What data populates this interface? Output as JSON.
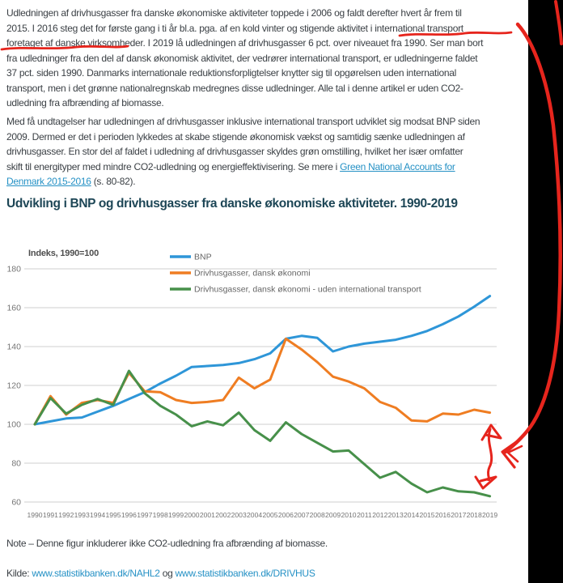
{
  "paragraph1": {
    "lines": [
      "Udledningen af drivhusgasser fra danske økonomiske aktiviteter toppede i 2006 og faldt derefter hvert år frem til",
      "2015. I 2016 steg det for første gang i ti år bl.a. pga. af en kold vinter og stigende aktivitet i international transport",
      "foretaget af danske virksomheder. I 2019 lå udledningen af drivhusgasser 6 pct. over niveauet fra 1990. Ser man bort",
      "fra udledninger fra den del af dansk økonomisk aktivitet, der vedrører international transport, er udledningerne faldet",
      "37 pct. siden 1990. Danmarks internationale reduktionsforpligtelser knytter sig til opgørelsen uden international",
      "transport, men i det grønne nationalregnskab medregnes disse udledninger. Alle tal i denne artikel er uden CO2-",
      "udledning fra afbrænding af biomasse."
    ]
  },
  "paragraph2": {
    "lines": [
      "Med få undtagelser har udledningen af drivhusgasser inklusive international transport udviklet sig modsat BNP siden",
      "2009. Dermed er det i perioden lykkedes at skabe stigende økonomisk vækst og samtidig sænke udledningen af",
      "drivhusgasser. En stor del af faldet i udledning af drivhusgasser skyldes grøn omstilling, hvilket her især omfatter"
    ],
    "line4_pre": "skift til energityper med mindre CO2-udledning og energieffektivisering. Se mere i ",
    "line4_link": "Green National Accounts for",
    "line5_link": "Denmark 2015-2016",
    "line5_post": " (s. 80-82)."
  },
  "heading": "Udvikling i BNP og drivhusgasser fra danske økonomiske aktiviteter. 1990-2019",
  "chart_data": {
    "type": "line",
    "title": "Udvikling i BNP og drivhusgasser fra danske økonomiske aktiviteter. 1990-2019",
    "axis_label": "Indeks, 1990=100",
    "grid": true,
    "legend_position": "top",
    "ylim": [
      60,
      180
    ],
    "yticks": [
      180,
      160,
      140,
      120,
      100,
      80,
      60
    ],
    "x": [
      1990,
      1991,
      1992,
      1993,
      1994,
      1995,
      1996,
      1997,
      1998,
      1999,
      2000,
      2001,
      2002,
      2003,
      2004,
      2005,
      2006,
      2007,
      2008,
      2009,
      2010,
      2011,
      2012,
      2013,
      2014,
      2015,
      2016,
      2017,
      2018,
      2019
    ],
    "series": [
      {
        "name": "BNP",
        "color": "#2e96d8",
        "values": [
          100,
          101.5,
          103,
          103.5,
          106.5,
          109.5,
          113,
          116.5,
          121,
          125,
          129.5,
          130,
          130.5,
          131.5,
          133.5,
          136.5,
          144,
          145.5,
          144.5,
          137.5,
          140,
          141.5,
          142.5,
          143.5,
          145.5,
          148,
          151.5,
          155.5,
          160.5,
          166
        ]
      },
      {
        "name": "Drivhusgasser, dansk økonomi",
        "color": "#ef7d22",
        "values": [
          100,
          114.5,
          105,
          111,
          112.5,
          111,
          126.5,
          117,
          116.5,
          112.5,
          111,
          111.5,
          112.5,
          124,
          118.5,
          123,
          144,
          138.5,
          132,
          124.5,
          122,
          118.5,
          111.5,
          108.5,
          102,
          101.5,
          105.5,
          105,
          107.5,
          106
        ]
      },
      {
        "name": "Drivhusgasser, dansk økonomi - uden international transport",
        "color": "#47904a",
        "values": [
          100,
          113.5,
          105.5,
          110,
          113,
          110,
          127.5,
          116,
          109.5,
          105,
          99,
          101.5,
          99.5,
          106,
          97,
          91.5,
          101,
          95,
          90.5,
          86,
          86.5,
          79.5,
          72.5,
          75.5,
          69.5,
          65,
          67.5,
          65.5,
          65,
          63
        ]
      }
    ],
    "style": {
      "grid_color": "#cfcfcf",
      "tick_color": "#757575",
      "legend_text_color": "#666666",
      "axis_label_color": "#4d4d4d"
    }
  },
  "note": "Note – Denne figur inkluderer ikke CO2-udledning fra afbrænding af biomasse.",
  "source": {
    "prefix": "Kilde: ",
    "link1": "www.statistikbanken.dk/NAHL2",
    "separator": " og ",
    "link2": "www.statistikbanken.dk/DRIVHUS"
  },
  "annotations": {
    "color": "#e6251d",
    "marks": [
      "underline-international-transport",
      "underline-foretaget-af-danske-virksomheder",
      "curve-right-margin-pointer",
      "double-arrow-gap-orange-green-2019"
    ]
  }
}
